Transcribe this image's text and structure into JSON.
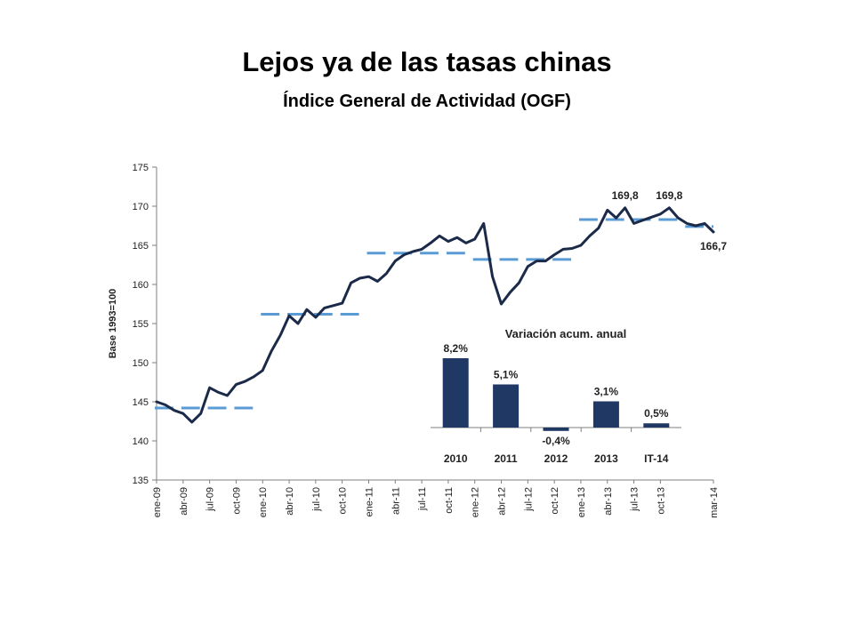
{
  "slide": {
    "title": "Lejos ya de las tasas chinas",
    "subtitle": "Índice General de Actividad (OGF)"
  },
  "colors": {
    "line": "#1b2a48",
    "annual_avg": "#5b9bd5",
    "bars": "#1f3864",
    "axis": "#7f7f7f"
  },
  "chart_data": [
    {
      "type": "line",
      "ylabel": "Base 1993=100",
      "xlabel": "",
      "ylim": [
        135,
        175
      ],
      "yticks": [
        135,
        140,
        145,
        150,
        155,
        160,
        165,
        170,
        175
      ],
      "xtick_labels": [
        "ene-09",
        "abr-09",
        "jul-09",
        "oct-09",
        "ene-10",
        "abr-10",
        "jul-10",
        "oct-10",
        "ene-11",
        "abr-11",
        "jul-11",
        "oct-11",
        "ene-12",
        "abr-12",
        "jul-12",
        "oct-12",
        "ene-13",
        "abr-13",
        "jul-13",
        "oct-13",
        "mar-14"
      ],
      "grid": false,
      "series": [
        {
          "values": [
            145.0,
            144.6,
            143.9,
            143.5,
            142.4,
            143.5,
            146.8,
            146.2,
            145.8,
            147.2,
            147.6,
            148.2,
            149.0,
            151.5,
            153.5,
            156.0,
            155.0,
            156.8,
            155.8,
            157.0,
            157.3,
            157.6,
            160.2,
            160.8,
            161.0,
            160.4,
            161.4,
            163.0,
            163.8,
            164.2,
            164.5,
            165.3,
            166.2,
            165.5,
            166.0,
            165.3,
            165.8,
            167.8,
            161.0,
            157.5,
            159.0,
            160.2,
            162.3,
            163.0,
            163.0,
            163.8,
            164.5,
            164.6,
            165.0,
            166.2,
            167.2,
            169.5,
            168.5,
            169.8,
            167.8,
            168.2,
            168.6,
            169.0,
            169.8,
            168.5,
            167.8,
            167.5,
            167.8,
            166.7
          ]
        }
      ],
      "annual_averages": [
        {
          "from": 0,
          "to": 11,
          "value": 144.2
        },
        {
          "from": 12,
          "to": 23,
          "value": 156.2
        },
        {
          "from": 24,
          "to": 35,
          "value": 164.0
        },
        {
          "from": 36,
          "to": 47,
          "value": 163.2
        },
        {
          "from": 48,
          "to": 59,
          "value": 168.3
        },
        {
          "from": 60,
          "to": 63,
          "value": 167.4
        }
      ],
      "annotations": [
        {
          "index": 53,
          "label": "169,8",
          "position": "above"
        },
        {
          "index": 58,
          "label": "169,8",
          "position": "above"
        },
        {
          "index": 63,
          "label": "166,7",
          "position": "below"
        }
      ]
    },
    {
      "type": "bar",
      "title": "Variación acum. anual",
      "categories": [
        "2010",
        "2011",
        "2012",
        "2013",
        "IT-14"
      ],
      "values": [
        8.2,
        5.1,
        -0.4,
        3.1,
        0.5
      ],
      "data_labels": [
        "8,2%",
        "5,1%",
        "-0,4%",
        "3,1%",
        "0,5%"
      ]
    }
  ]
}
